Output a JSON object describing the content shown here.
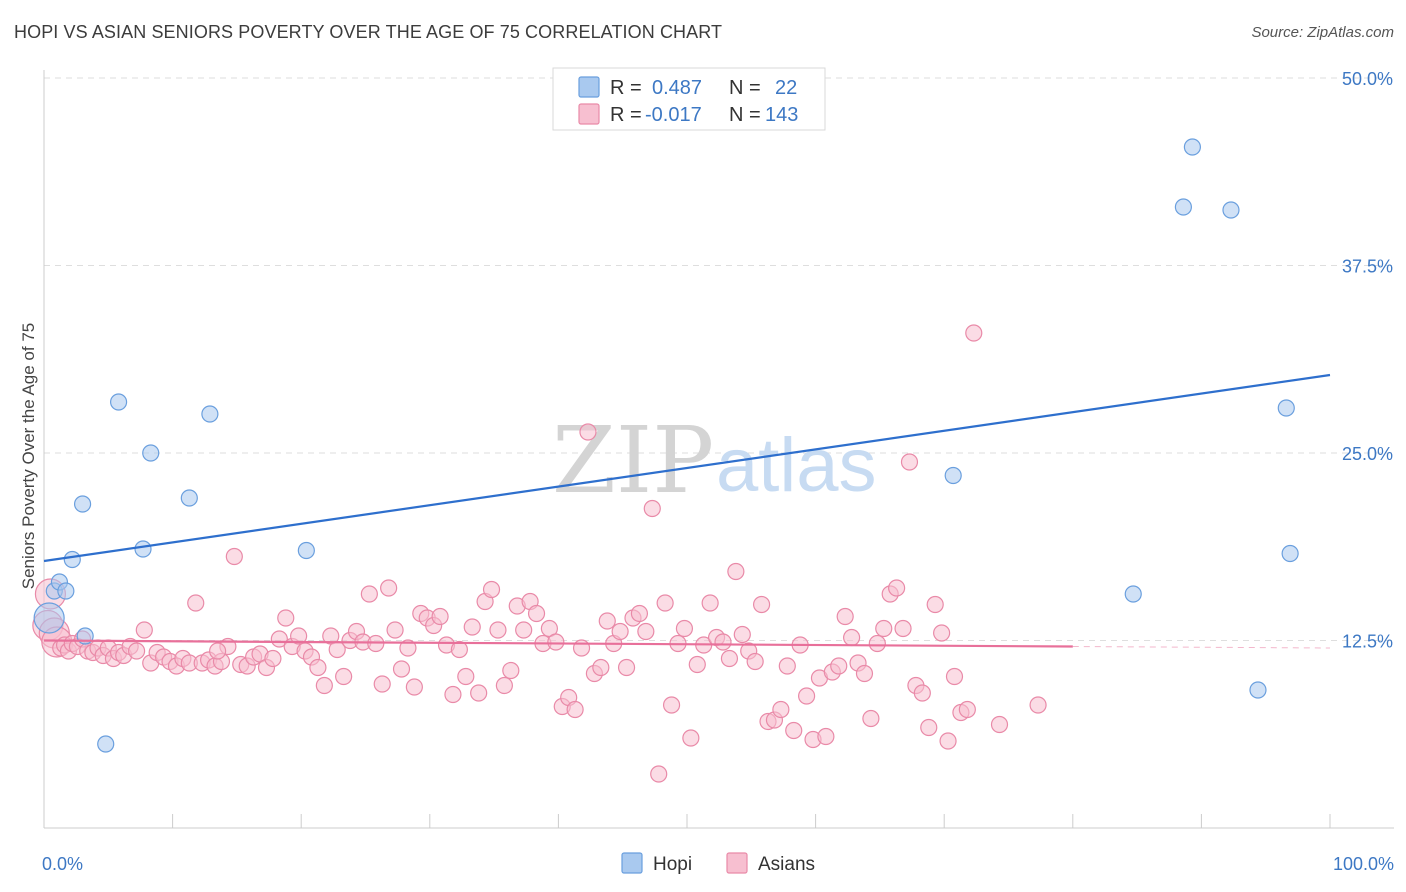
{
  "title": "HOPI VS ASIAN SENIORS POVERTY OVER THE AGE OF 75 CORRELATION CHART",
  "source": "Source: ZipAtlas.com",
  "watermark": {
    "zip": "ZIP",
    "atlas": "atlas"
  },
  "legend": {
    "rows": [
      {
        "r_label": "R =",
        "r_value": "0.487",
        "n_label": "N =",
        "n_value": "22",
        "color": "#a9c9ef",
        "stroke": "#6a9fde"
      },
      {
        "r_label": "R =",
        "r_value": "-0.017",
        "n_label": "N =",
        "n_value": "143",
        "color": "#f7bfd0",
        "stroke": "#e98aa8"
      }
    ]
  },
  "bottom_legend": [
    {
      "label": "Hopi",
      "color": "#a9c9ef",
      "stroke": "#6a9fde"
    },
    {
      "label": "Asians",
      "color": "#f7bfd0",
      "stroke": "#e98aa8"
    }
  ],
  "chart_data": {
    "type": "scatter",
    "title": "HOPI VS ASIAN SENIORS POVERTY OVER THE AGE OF 75 CORRELATION CHART",
    "xlabel": "",
    "ylabel": "Seniors Poverty Over the Age of 75",
    "xlim": [
      0,
      100
    ],
    "ylim": [
      0,
      50
    ],
    "x_tick_labels": [
      "0.0%",
      "100.0%"
    ],
    "y_ticks": [
      12.5,
      25.0,
      37.5,
      50.0
    ],
    "y_tick_labels": [
      "12.5%",
      "25.0%",
      "37.5%",
      "50.0%"
    ],
    "series": [
      {
        "name": "Hopi",
        "color": "#a9c9ef",
        "stroke": "#6a9fde",
        "trend": {
          "x": [
            0,
            100
          ],
          "y": [
            17.8,
            30.2
          ],
          "color": "#2e6fcd"
        },
        "points": [
          [
            0.8,
            15.8
          ],
          [
            1.2,
            16.4
          ],
          [
            1.7,
            15.8
          ],
          [
            2.2,
            17.9
          ],
          [
            3.0,
            21.6
          ],
          [
            3.2,
            12.8
          ],
          [
            4.8,
            5.6
          ],
          [
            5.8,
            28.4
          ],
          [
            7.7,
            18.6
          ],
          [
            8.3,
            25.0
          ],
          [
            11.3,
            22.0
          ],
          [
            12.9,
            27.6
          ],
          [
            20.4,
            18.5
          ],
          [
            70.7,
            23.5
          ],
          [
            84.7,
            15.6
          ],
          [
            88.6,
            41.4
          ],
          [
            89.3,
            45.4
          ],
          [
            92.3,
            41.2
          ],
          [
            94.4,
            9.2
          ],
          [
            96.6,
            28.0
          ],
          [
            96.9,
            18.3
          ],
          [
            0.4,
            14.0
          ]
        ]
      },
      {
        "name": "Asians",
        "color": "#f7bfd0",
        "stroke": "#e98aa8",
        "trend": {
          "x": [
            0,
            80
          ],
          "y": [
            12.5,
            12.1
          ],
          "color": "#e8709a"
        },
        "points": [
          [
            0.3,
            13.5
          ],
          [
            0.5,
            15.6
          ],
          [
            0.8,
            13.0
          ],
          [
            1.0,
            12.4
          ],
          [
            1.3,
            12.0
          ],
          [
            1.6,
            12.2
          ],
          [
            1.9,
            11.8
          ],
          [
            2.2,
            12.3
          ],
          [
            2.6,
            12.1
          ],
          [
            3.0,
            12.6
          ],
          [
            3.4,
            11.8
          ],
          [
            3.8,
            11.7
          ],
          [
            4.2,
            12.0
          ],
          [
            4.6,
            11.5
          ],
          [
            5.0,
            12.0
          ],
          [
            5.4,
            11.3
          ],
          [
            5.8,
            11.7
          ],
          [
            6.2,
            11.5
          ],
          [
            6.7,
            12.1
          ],
          [
            7.2,
            11.8
          ],
          [
            7.8,
            13.2
          ],
          [
            8.3,
            11.0
          ],
          [
            8.8,
            11.7
          ],
          [
            9.3,
            11.4
          ],
          [
            9.8,
            11.1
          ],
          [
            10.3,
            10.8
          ],
          [
            10.8,
            11.3
          ],
          [
            11.3,
            11.0
          ],
          [
            11.8,
            15.0
          ],
          [
            12.3,
            11.0
          ],
          [
            12.8,
            11.2
          ],
          [
            13.3,
            10.8
          ],
          [
            13.8,
            11.1
          ],
          [
            14.3,
            12.1
          ],
          [
            14.8,
            18.1
          ],
          [
            15.3,
            10.9
          ],
          [
            15.8,
            10.8
          ],
          [
            16.3,
            11.4
          ],
          [
            16.8,
            11.6
          ],
          [
            17.3,
            10.7
          ],
          [
            17.8,
            11.3
          ],
          [
            18.3,
            12.6
          ],
          [
            18.8,
            14.0
          ],
          [
            19.3,
            12.1
          ],
          [
            19.8,
            12.8
          ],
          [
            20.3,
            11.8
          ],
          [
            20.8,
            11.4
          ],
          [
            21.3,
            10.7
          ],
          [
            21.8,
            9.5
          ],
          [
            22.3,
            12.8
          ],
          [
            22.8,
            11.9
          ],
          [
            23.3,
            10.1
          ],
          [
            23.8,
            12.5
          ],
          [
            24.3,
            13.1
          ],
          [
            24.8,
            12.4
          ],
          [
            25.3,
            15.6
          ],
          [
            25.8,
            12.3
          ],
          [
            26.3,
            9.6
          ],
          [
            26.8,
            16.0
          ],
          [
            27.3,
            13.2
          ],
          [
            27.8,
            10.6
          ],
          [
            28.3,
            12.0
          ],
          [
            28.8,
            9.4
          ],
          [
            29.3,
            14.3
          ],
          [
            29.8,
            14.0
          ],
          [
            30.3,
            13.5
          ],
          [
            30.8,
            14.1
          ],
          [
            31.3,
            12.2
          ],
          [
            31.8,
            8.9
          ],
          [
            32.3,
            11.9
          ],
          [
            32.8,
            10.1
          ],
          [
            33.3,
            13.4
          ],
          [
            33.8,
            9.0
          ],
          [
            34.3,
            15.1
          ],
          [
            34.8,
            15.9
          ],
          [
            35.3,
            13.2
          ],
          [
            35.8,
            9.5
          ],
          [
            36.3,
            10.5
          ],
          [
            36.8,
            14.8
          ],
          [
            37.3,
            13.2
          ],
          [
            37.8,
            15.1
          ],
          [
            38.3,
            14.3
          ],
          [
            38.8,
            12.3
          ],
          [
            39.3,
            13.3
          ],
          [
            39.8,
            12.4
          ],
          [
            40.3,
            8.1
          ],
          [
            40.8,
            8.7
          ],
          [
            41.3,
            7.9
          ],
          [
            41.8,
            12.0
          ],
          [
            42.3,
            26.4
          ],
          [
            42.8,
            10.3
          ],
          [
            43.3,
            10.7
          ],
          [
            43.8,
            13.8
          ],
          [
            44.3,
            12.3
          ],
          [
            44.8,
            13.1
          ],
          [
            45.3,
            10.7
          ],
          [
            45.8,
            14.0
          ],
          [
            46.3,
            14.3
          ],
          [
            46.8,
            13.1
          ],
          [
            47.3,
            21.3
          ],
          [
            47.8,
            3.6
          ],
          [
            48.3,
            15.0
          ],
          [
            48.8,
            8.2
          ],
          [
            49.3,
            12.3
          ],
          [
            49.8,
            13.3
          ],
          [
            50.3,
            6.0
          ],
          [
            50.8,
            10.9
          ],
          [
            51.3,
            12.2
          ],
          [
            51.8,
            15.0
          ],
          [
            52.3,
            12.7
          ],
          [
            52.8,
            12.4
          ],
          [
            53.3,
            11.3
          ],
          [
            53.8,
            17.1
          ],
          [
            54.3,
            12.9
          ],
          [
            54.8,
            11.8
          ],
          [
            55.3,
            11.1
          ],
          [
            55.8,
            14.9
          ],
          [
            56.3,
            7.1
          ],
          [
            56.8,
            7.2
          ],
          [
            57.3,
            7.9
          ],
          [
            57.8,
            10.8
          ],
          [
            58.3,
            6.5
          ],
          [
            58.8,
            12.2
          ],
          [
            59.3,
            8.8
          ],
          [
            59.8,
            5.9
          ],
          [
            60.3,
            10.0
          ],
          [
            60.8,
            6.1
          ],
          [
            61.3,
            10.4
          ],
          [
            61.8,
            10.8
          ],
          [
            62.3,
            14.1
          ],
          [
            62.8,
            12.7
          ],
          [
            63.3,
            11.0
          ],
          [
            63.8,
            10.3
          ],
          [
            64.3,
            7.3
          ],
          [
            64.8,
            12.3
          ],
          [
            65.3,
            13.3
          ],
          [
            65.8,
            15.6
          ],
          [
            66.3,
            16.0
          ],
          [
            66.8,
            13.3
          ],
          [
            67.3,
            24.4
          ],
          [
            67.8,
            9.5
          ],
          [
            68.3,
            9.0
          ],
          [
            68.8,
            6.7
          ],
          [
            69.3,
            14.9
          ],
          [
            69.8,
            13.0
          ],
          [
            70.3,
            5.8
          ],
          [
            70.8,
            10.1
          ],
          [
            71.3,
            7.7
          ],
          [
            71.8,
            7.9
          ],
          [
            72.3,
            33.0
          ],
          [
            74.3,
            6.9
          ],
          [
            77.3,
            8.2
          ],
          [
            13.5,
            11.8
          ]
        ]
      }
    ]
  }
}
